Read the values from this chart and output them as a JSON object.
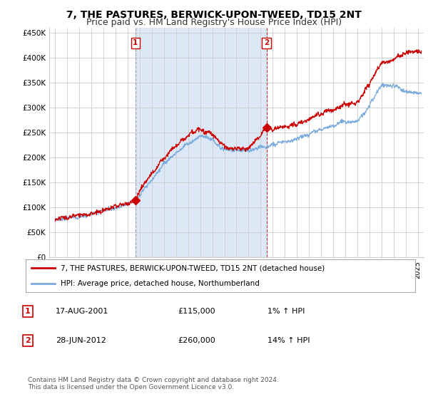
{
  "title": "7, THE PASTURES, BERWICK-UPON-TWEED, TD15 2NT",
  "subtitle": "Price paid vs. HM Land Registry's House Price Index (HPI)",
  "ylabel_ticks": [
    "£0",
    "£50K",
    "£100K",
    "£150K",
    "£200K",
    "£250K",
    "£300K",
    "£350K",
    "£400K",
    "£450K"
  ],
  "ytick_values": [
    0,
    50000,
    100000,
    150000,
    200000,
    250000,
    300000,
    350000,
    400000,
    450000
  ],
  "ylim": [
    0,
    460000
  ],
  "xlim_start": 1994.5,
  "xlim_end": 2025.5,
  "sale1_x": 2001.63,
  "sale1_y": 115000,
  "sale2_x": 2012.49,
  "sale2_y": 260000,
  "sale1_label": "1",
  "sale2_label": "2",
  "sale_color": "#cc0000",
  "hpi_color": "#7aabdc",
  "shade_color": "#dce8f5",
  "legend_sale": "7, THE PASTURES, BERWICK-UPON-TWEED, TD15 2NT (detached house)",
  "legend_hpi": "HPI: Average price, detached house, Northumberland",
  "info1_num": "1",
  "info1_date": "17-AUG-2001",
  "info1_price": "£115,000",
  "info1_hpi": "1% ↑ HPI",
  "info2_num": "2",
  "info2_date": "28-JUN-2012",
  "info2_price": "£260,000",
  "info2_hpi": "14% ↑ HPI",
  "footnote1": "Contains HM Land Registry data © Crown copyright and database right 2024.",
  "footnote2": "This data is licensed under the Open Government Licence v3.0.",
  "background_color": "#ffffff",
  "plot_bg_color": "#ffffff",
  "grid_color": "#cccccc",
  "title_fontsize": 10,
  "subtitle_fontsize": 9,
  "tick_fontsize": 7.5
}
